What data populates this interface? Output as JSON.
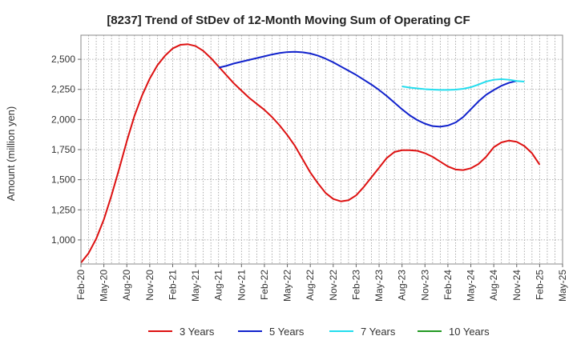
{
  "chart_data": {
    "type": "line",
    "title": "[8237]  Trend of StDev of 12-Month Moving Sum of Operating CF",
    "xlabel": "",
    "ylabel": "Amount (million yen)",
    "ylim": [
      800,
      2700
    ],
    "y_ticks": [
      1000,
      1250,
      1500,
      1750,
      2000,
      2250,
      2500
    ],
    "y_tick_labels": [
      "1,000",
      "1,250",
      "1,500",
      "1,750",
      "2,000",
      "2,250",
      "2,500"
    ],
    "x_tick_labels": [
      "Feb-20",
      "May-20",
      "Aug-20",
      "Nov-20",
      "Feb-21",
      "May-21",
      "Aug-21",
      "Nov-21",
      "Feb-22",
      "May-22",
      "Aug-22",
      "Nov-22",
      "Feb-23",
      "May-23",
      "Aug-23",
      "Nov-23",
      "Feb-24",
      "May-24",
      "Aug-24",
      "Nov-24",
      "Feb-25",
      "May-25"
    ],
    "grid": true,
    "legend_position": "bottom",
    "series": [
      {
        "name": "3 Years",
        "color": "#dd1111",
        "start_index": 0,
        "values": [
          810,
          890,
          1010,
          1170,
          1370,
          1590,
          1820,
          2030,
          2200,
          2340,
          2450,
          2530,
          2590,
          2620,
          2625,
          2610,
          2570,
          2510,
          2440,
          2370,
          2300,
          2240,
          2180,
          2130,
          2080,
          2020,
          1950,
          1870,
          1780,
          1670,
          1560,
          1470,
          1390,
          1340,
          1320,
          1330,
          1370,
          1440,
          1520,
          1600,
          1680,
          1730,
          1745,
          1745,
          1740,
          1720,
          1690,
          1650,
          1610,
          1585,
          1580,
          1595,
          1630,
          1690,
          1770,
          1810,
          1825,
          1815,
          1780,
          1720,
          1625
        ]
      },
      {
        "name": "5 Years",
        "color": "#1122cc",
        "start_index": 18,
        "values": [
          2430,
          2445,
          2465,
          2480,
          2495,
          2510,
          2525,
          2540,
          2552,
          2560,
          2562,
          2558,
          2548,
          2530,
          2505,
          2475,
          2440,
          2405,
          2370,
          2330,
          2290,
          2245,
          2195,
          2140,
          2085,
          2035,
          1995,
          1965,
          1945,
          1940,
          1950,
          1975,
          2020,
          2085,
          2150,
          2205,
          2245,
          2280,
          2305,
          2320
        ]
      },
      {
        "name": "7 Years",
        "color": "#22ddee",
        "start_index": 42,
        "values": [
          2275,
          2265,
          2258,
          2252,
          2248,
          2246,
          2246,
          2248,
          2255,
          2268,
          2290,
          2315,
          2330,
          2335,
          2330,
          2320,
          2315
        ]
      },
      {
        "name": "10 Years",
        "color": "#229922",
        "start_index": 0,
        "values": []
      }
    ]
  }
}
